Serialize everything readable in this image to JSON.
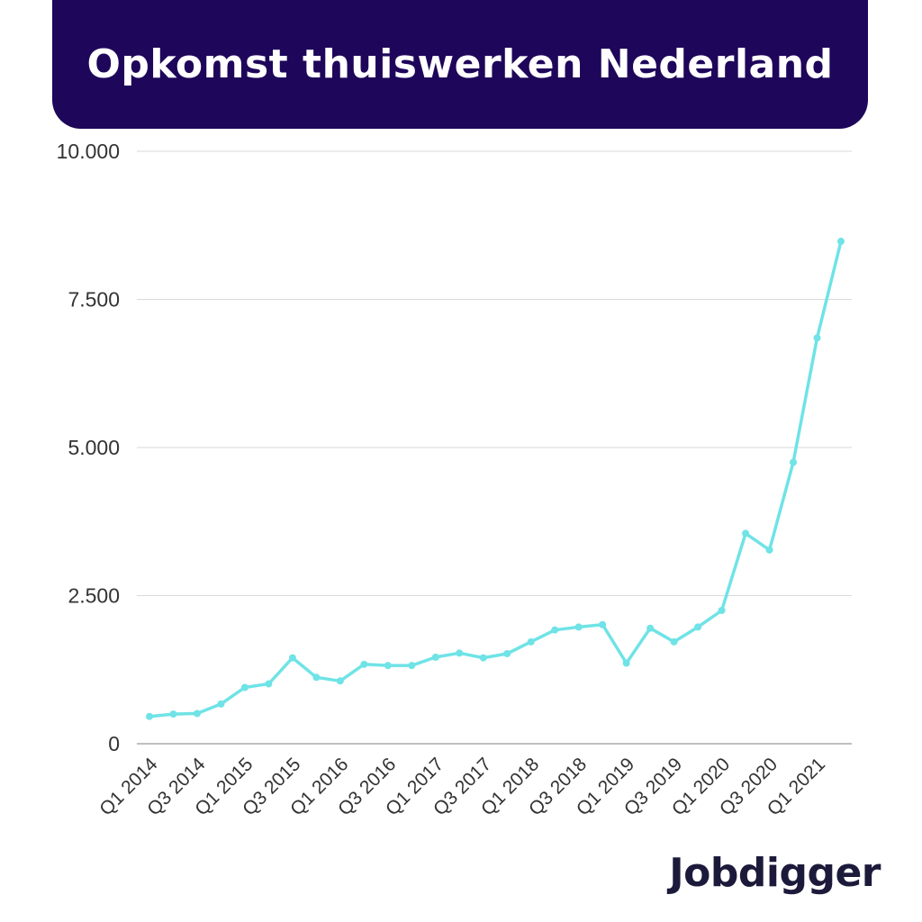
{
  "header": {
    "title": "Opkomst thuiswerken Nederland"
  },
  "brand": {
    "logo_text": "Jobdigger"
  },
  "colors": {
    "header_bg": "#1e065a",
    "line": "#6fe3e6",
    "grid": "#d9d9d9",
    "brand": "#1c1a3a"
  },
  "chart_data": {
    "type": "line",
    "title": "Opkomst thuiswerken Nederland",
    "xlabel": "",
    "ylabel": "",
    "ylim": [
      0,
      10000
    ],
    "yticks": [
      0,
      2500,
      5000,
      7500,
      10000
    ],
    "ytick_labels": [
      "0",
      "2.500",
      "5.000",
      "7.500",
      "10.000"
    ],
    "xtick_labels": [
      "Q1 2014",
      "Q3 2014",
      "Q1 2015",
      "Q3 2015",
      "Q1 2016",
      "Q3 2016",
      "Q1 2017",
      "Q3 2017",
      "Q1 2018",
      "Q3 2018",
      "Q1 2019",
      "Q3 2019",
      "Q1 2020",
      "Q3 2020",
      "Q1 2021"
    ],
    "grid": true,
    "categories": [
      "Q1 2014",
      "Q2 2014",
      "Q3 2014",
      "Q4 2014",
      "Q1 2015",
      "Q2 2015",
      "Q3 2015",
      "Q4 2015",
      "Q1 2016",
      "Q2 2016",
      "Q3 2016",
      "Q4 2016",
      "Q1 2017",
      "Q2 2017",
      "Q3 2017",
      "Q4 2017",
      "Q1 2018",
      "Q2 2018",
      "Q3 2018",
      "Q4 2018",
      "Q1 2019",
      "Q2 2019",
      "Q3 2019",
      "Q4 2019",
      "Q1 2020",
      "Q2 2020",
      "Q3 2020",
      "Q4 2020",
      "Q1 2021",
      "Q2 2021"
    ],
    "series": [
      {
        "values": [
          460,
          500,
          510,
          670,
          950,
          1010,
          1450,
          1120,
          1060,
          1340,
          1320,
          1320,
          1460,
          1530,
          1450,
          1520,
          1720,
          1920,
          1970,
          2010,
          1360,
          1950,
          1720,
          1970,
          2250,
          3550,
          3270,
          4750,
          6850,
          8480
        ]
      }
    ]
  }
}
